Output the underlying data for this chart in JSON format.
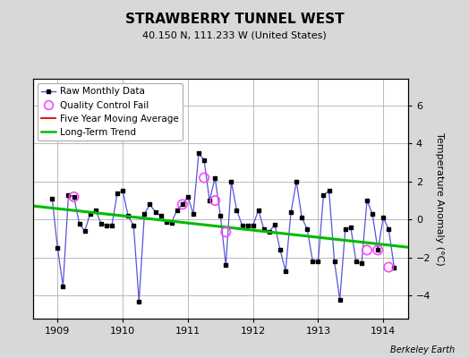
{
  "title": "STRAWBERRY TUNNEL WEST",
  "subtitle": "40.150 N, 111.233 W (United States)",
  "ylabel": "Temperature Anomaly (°C)",
  "credit": "Berkeley Earth",
  "bg_color": "#d8d8d8",
  "plot_bg_color": "#ffffff",
  "grid_color": "#b0b0b0",
  "xlim": [
    1908.62,
    1914.38
  ],
  "ylim": [
    -5.2,
    7.4
  ],
  "yticks": [
    -4,
    -2,
    0,
    2,
    4,
    6
  ],
  "xticks": [
    1909,
    1910,
    1911,
    1912,
    1913,
    1914
  ],
  "raw_x": [
    1908.917,
    1909.0,
    1909.083,
    1909.167,
    1909.25,
    1909.333,
    1909.417,
    1909.5,
    1909.583,
    1909.667,
    1909.75,
    1909.833,
    1909.917,
    1910.0,
    1910.083,
    1910.167,
    1910.25,
    1910.333,
    1910.417,
    1910.5,
    1910.583,
    1910.667,
    1910.75,
    1910.833,
    1910.917,
    1911.0,
    1911.083,
    1911.167,
    1911.25,
    1911.333,
    1911.417,
    1911.5,
    1911.583,
    1911.667,
    1911.75,
    1911.833,
    1911.917,
    1912.0,
    1912.083,
    1912.167,
    1912.25,
    1912.333,
    1912.417,
    1912.5,
    1912.583,
    1912.667,
    1912.75,
    1912.833,
    1912.917,
    1913.0,
    1913.083,
    1913.167,
    1913.25,
    1913.333,
    1913.417,
    1913.5,
    1913.583,
    1913.667,
    1913.75,
    1913.833,
    1913.917,
    1914.0,
    1914.083,
    1914.167
  ],
  "raw_y": [
    1.1,
    -1.5,
    -3.5,
    1.3,
    1.2,
    -0.2,
    -0.6,
    0.3,
    0.5,
    -0.2,
    -0.3,
    -0.3,
    1.4,
    1.5,
    0.2,
    -0.3,
    -4.3,
    0.3,
    0.8,
    0.4,
    0.2,
    -0.1,
    -0.15,
    0.5,
    0.8,
    1.2,
    0.3,
    3.5,
    3.1,
    1.0,
    2.2,
    0.2,
    -2.4,
    2.0,
    0.5,
    -0.3,
    -0.3,
    -0.3,
    0.5,
    -0.5,
    -0.65,
    -0.25,
    -1.6,
    -2.7,
    0.4,
    2.0,
    0.1,
    -0.5,
    -2.2,
    -2.2,
    1.3,
    1.5,
    -2.2,
    -4.2,
    -0.5,
    -0.4,
    -2.2,
    -2.3,
    1.0,
    0.3,
    -1.6,
    0.1,
    -0.5,
    -2.5
  ],
  "qc_fail_x": [
    1909.25,
    1910.917,
    1911.25,
    1911.417,
    1911.583,
    1913.917,
    1913.75,
    1914.083
  ],
  "qc_fail_y": [
    1.2,
    0.8,
    2.2,
    1.0,
    -0.65,
    -1.6,
    -1.6,
    -2.5
  ],
  "trend_x": [
    1908.62,
    1914.38
  ],
  "trend_y": [
    0.72,
    -1.45
  ],
  "raw_line_color": "#5555dd",
  "raw_marker_color": "#000000",
  "qc_color": "#ff44ff",
  "trend_color": "#00bb00",
  "mavg_color": "#dd0000",
  "legend_fontsize": 7.5,
  "title_fontsize": 11,
  "subtitle_fontsize": 8,
  "tick_labelsize": 8
}
